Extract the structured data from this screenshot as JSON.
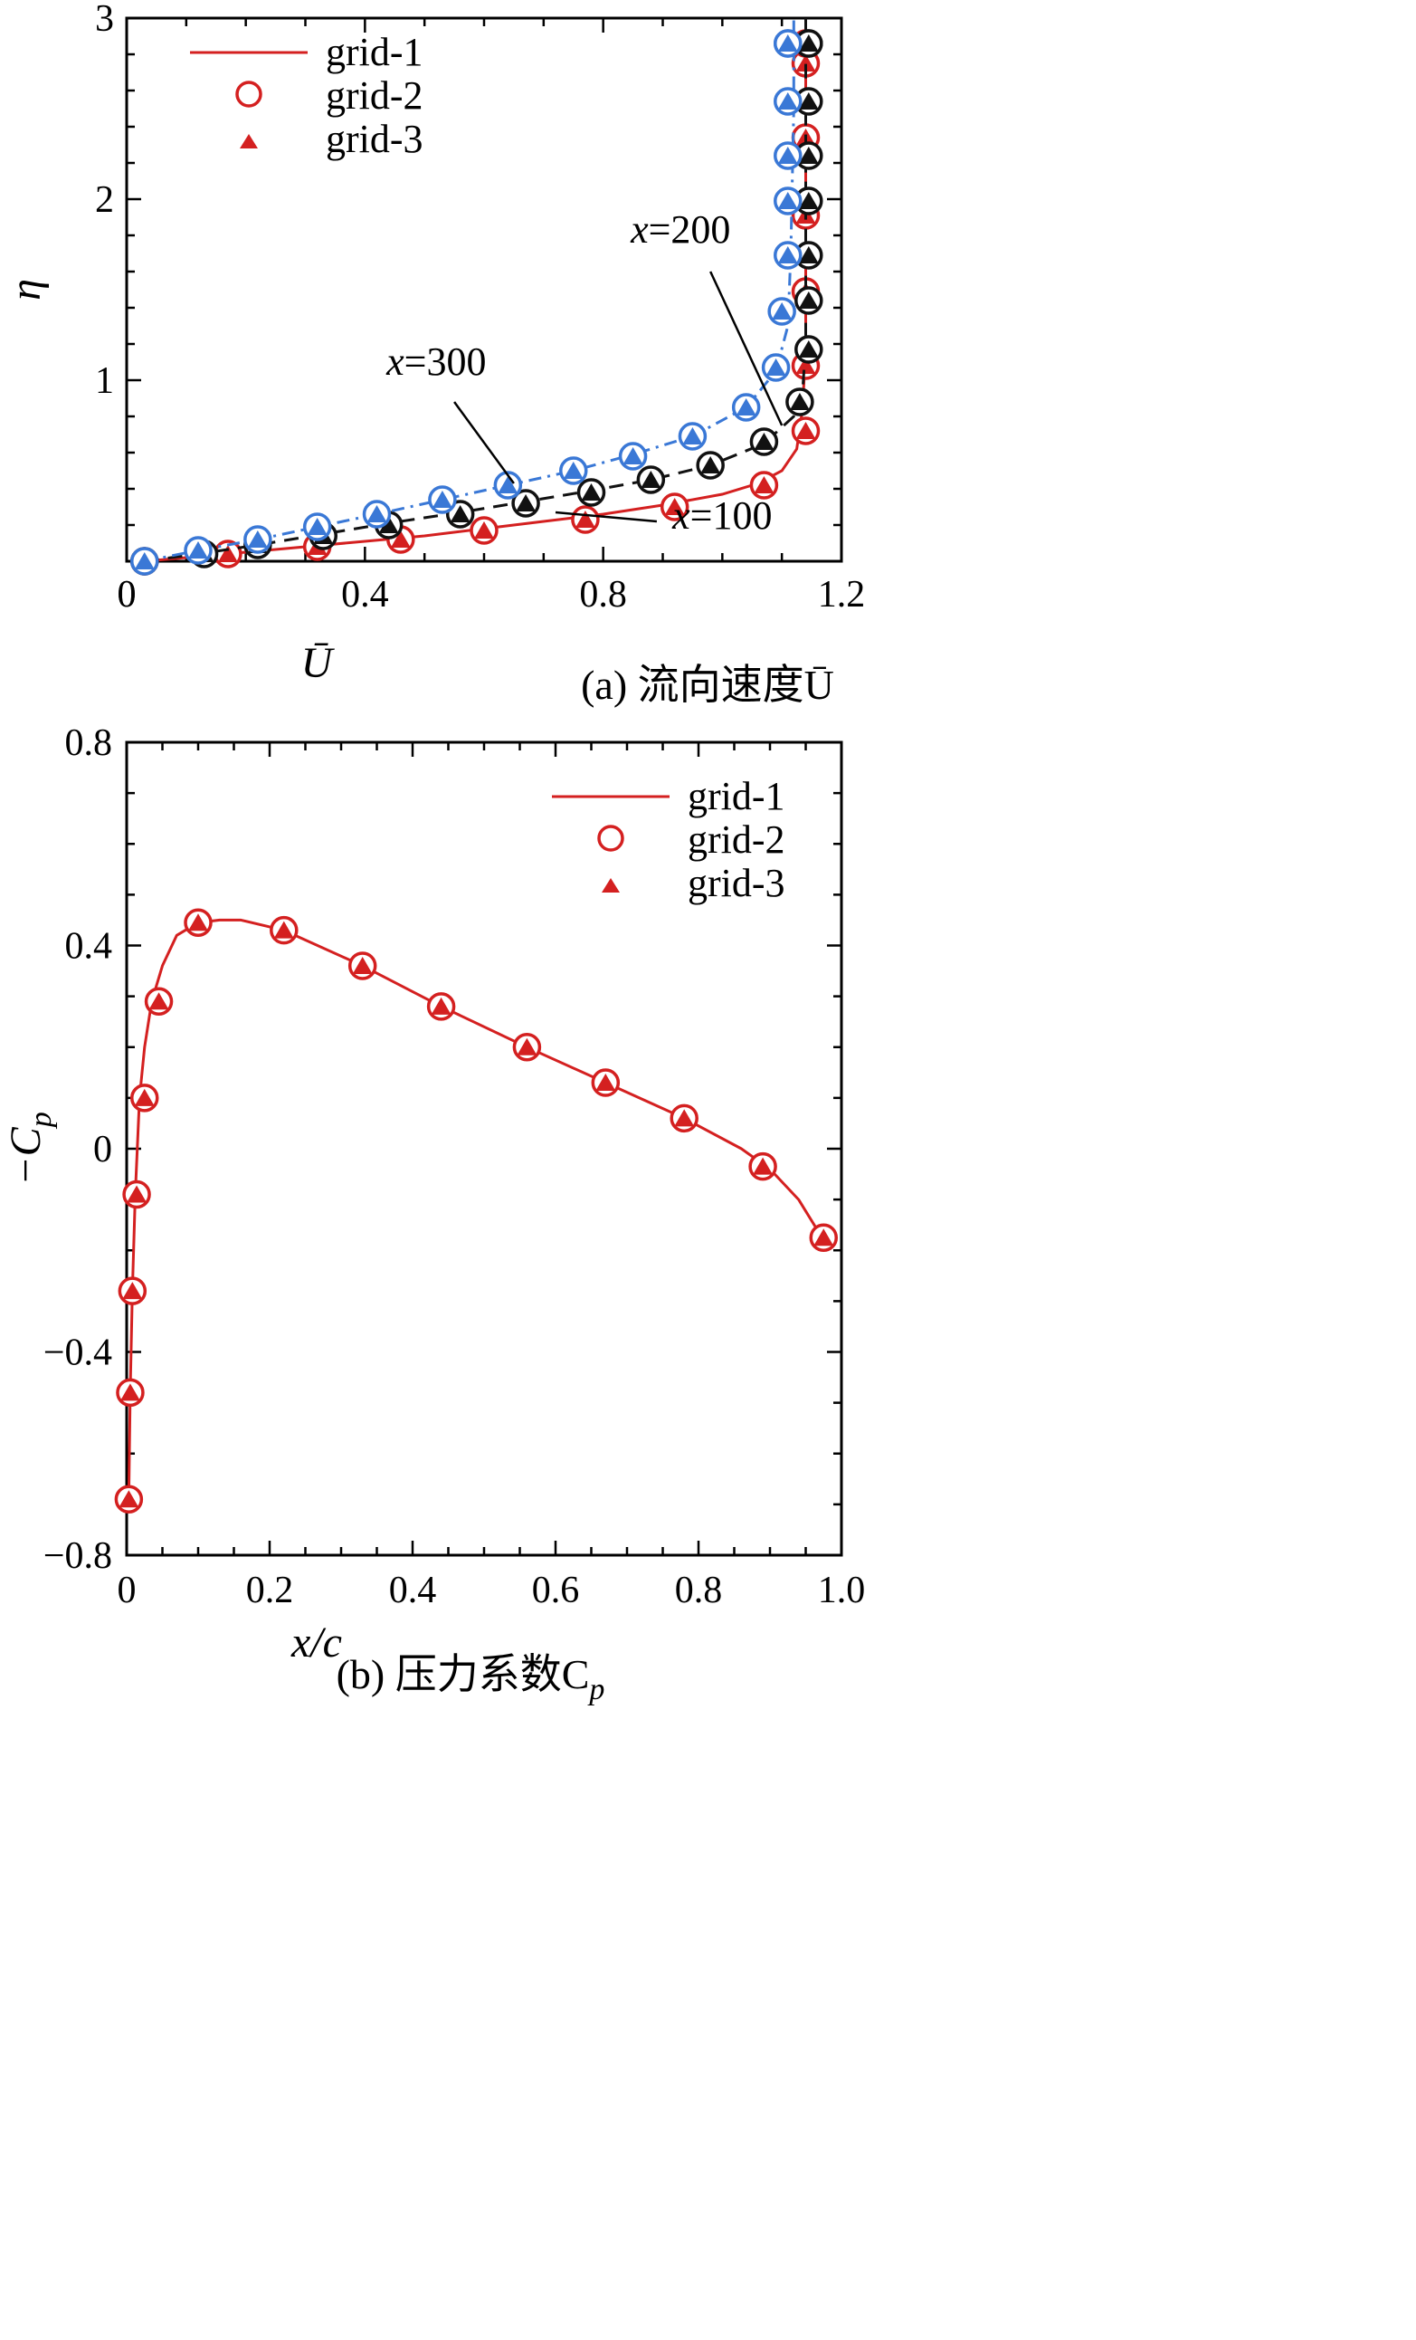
{
  "chart_data": [
    {
      "type": "line",
      "caption": "(a) 流向速度Ū",
      "xlabel": "Ū",
      "ylabel": "η",
      "xlim": [
        0,
        1.2
      ],
      "ylim": [
        0,
        3
      ],
      "xticks": [
        "0",
        "0.4",
        "0.8",
        "1.2"
      ],
      "yticks": [
        "1",
        "2",
        "3"
      ],
      "legend": {
        "placement": "top-left",
        "entries": [
          "grid-1",
          "grid-2",
          "grid-3"
        ]
      },
      "annotations": [
        {
          "text_x": "x",
          "text_rest": "=100",
          "text_at": [
            1.0,
            0.18
          ],
          "leader_from": [
            0.89,
            0.22
          ],
          "leader_to": [
            0.72,
            0.27
          ]
        },
        {
          "text_x": "x",
          "text_rest": "=200",
          "text_at": [
            0.93,
            1.76
          ],
          "leader_from": [
            0.98,
            1.6
          ],
          "leader_to": [
            1.1,
            0.75
          ]
        },
        {
          "text_x": "x",
          "text_rest": "=300",
          "text_at": [
            0.52,
            1.03
          ],
          "leader_from": [
            0.55,
            0.88
          ],
          "leader_to": [
            0.65,
            0.43
          ]
        }
      ],
      "series": [
        {
          "name": "x=100",
          "color": "#d42020",
          "dash": "solid",
          "curve_x": [
            0.03,
            0.1,
            0.2,
            0.3,
            0.4,
            0.5,
            0.6,
            0.7,
            0.8,
            0.9,
            1.0,
            1.06,
            1.1,
            1.125,
            1.135,
            1.14,
            1.14
          ],
          "curve_y": [
            0.0,
            0.02,
            0.05,
            0.08,
            0.11,
            0.14,
            0.18,
            0.22,
            0.26,
            0.31,
            0.37,
            0.43,
            0.5,
            0.62,
            0.85,
            1.2,
            3.0
          ],
          "markers_x": [
            0.03,
            0.17,
            0.32,
            0.46,
            0.6,
            0.77,
            0.92,
            1.07,
            1.14,
            1.14,
            1.14,
            1.14,
            1.14,
            1.14,
            1.14
          ],
          "markers_y": [
            0.0,
            0.04,
            0.08,
            0.12,
            0.17,
            0.23,
            0.3,
            0.42,
            0.72,
            1.08,
            1.49,
            1.91,
            2.34,
            2.75,
            2.86
          ]
        },
        {
          "name": "x=200",
          "color": "#111111",
          "dash": "dashed",
          "curve_x": [
            0.03,
            0.12,
            0.22,
            0.33,
            0.44,
            0.56,
            0.67,
            0.78,
            0.88,
            0.98,
            1.07,
            1.12,
            1.135,
            1.14,
            1.14
          ],
          "curve_y": [
            0.0,
            0.04,
            0.09,
            0.15,
            0.21,
            0.27,
            0.33,
            0.39,
            0.45,
            0.53,
            0.65,
            0.8,
            0.95,
            1.2,
            3.0
          ],
          "markers_x": [
            0.03,
            0.13,
            0.22,
            0.33,
            0.44,
            0.56,
            0.67,
            0.78,
            0.88,
            0.98,
            1.07,
            1.13,
            1.145,
            1.145,
            1.145,
            1.145,
            1.145,
            1.145,
            1.145,
            1.145
          ],
          "markers_y": [
            0.0,
            0.04,
            0.09,
            0.14,
            0.2,
            0.26,
            0.32,
            0.38,
            0.45,
            0.53,
            0.66,
            0.88,
            1.17,
            1.44,
            1.69,
            1.99,
            2.24,
            2.54,
            2.86,
            2.86
          ]
        },
        {
          "name": "x=300",
          "color": "#3a78d6",
          "dash": "dashdot",
          "curve_x": [
            0.03,
            0.12,
            0.22,
            0.32,
            0.42,
            0.53,
            0.64,
            0.75,
            0.85,
            0.95,
            1.04,
            1.09,
            1.11,
            1.115,
            1.12,
            1.12
          ],
          "curve_y": [
            0.0,
            0.06,
            0.12,
            0.19,
            0.26,
            0.34,
            0.42,
            0.5,
            0.59,
            0.69,
            0.85,
            1.05,
            1.3,
            1.7,
            2.5,
            3.0
          ],
          "markers_x": [
            0.03,
            0.12,
            0.22,
            0.32,
            0.42,
            0.53,
            0.64,
            0.75,
            0.85,
            0.95,
            1.04,
            1.09,
            1.1,
            1.11,
            1.11,
            1.11,
            1.11,
            1.11,
            1.11
          ],
          "markers_y": [
            0.0,
            0.06,
            0.12,
            0.19,
            0.26,
            0.34,
            0.42,
            0.5,
            0.58,
            0.69,
            0.85,
            1.07,
            1.38,
            1.69,
            1.99,
            2.24,
            2.54,
            2.86,
            2.86
          ]
        }
      ]
    },
    {
      "type": "line",
      "caption": "(b) 压力系数C",
      "caption_sub": "p",
      "xlabel": "x/c",
      "ylabel": "−C",
      "ylabel_sub": "p",
      "xlim": [
        0,
        1.0
      ],
      "ylim": [
        -0.8,
        0.8
      ],
      "xticks": [
        "0",
        "0.2",
        "0.4",
        "0.6",
        "0.8",
        "1.0"
      ],
      "yticks": [
        "−0.8",
        "−0.4",
        "0",
        "0.4",
        "0.8"
      ],
      "legend": {
        "placement": "top-right",
        "entries": [
          "grid-1",
          "grid-2",
          "grid-3"
        ]
      },
      "series": [
        {
          "name": "grid-1",
          "color": "#d42020",
          "curve_x": [
            0.003,
            0.005,
            0.008,
            0.012,
            0.018,
            0.025,
            0.035,
            0.05,
            0.07,
            0.1,
            0.13,
            0.16,
            0.22,
            0.33,
            0.44,
            0.56,
            0.67,
            0.78,
            0.86,
            0.9,
            0.94,
            0.975
          ],
          "curve_y": [
            -0.68,
            -0.48,
            -0.28,
            -0.09,
            0.1,
            0.2,
            0.29,
            0.36,
            0.42,
            0.445,
            0.45,
            0.45,
            0.43,
            0.36,
            0.28,
            0.2,
            0.13,
            0.06,
            0.0,
            -0.04,
            -0.1,
            -0.18
          ],
          "markers_x": [
            0.003,
            0.005,
            0.008,
            0.014,
            0.025,
            0.045,
            0.1,
            0.22,
            0.33,
            0.44,
            0.56,
            0.67,
            0.78,
            0.89,
            0.975
          ],
          "markers_y": [
            -0.69,
            -0.48,
            -0.28,
            -0.09,
            0.1,
            0.29,
            0.445,
            0.43,
            0.36,
            0.28,
            0.2,
            0.13,
            0.06,
            -0.035,
            -0.175
          ]
        }
      ]
    }
  ]
}
